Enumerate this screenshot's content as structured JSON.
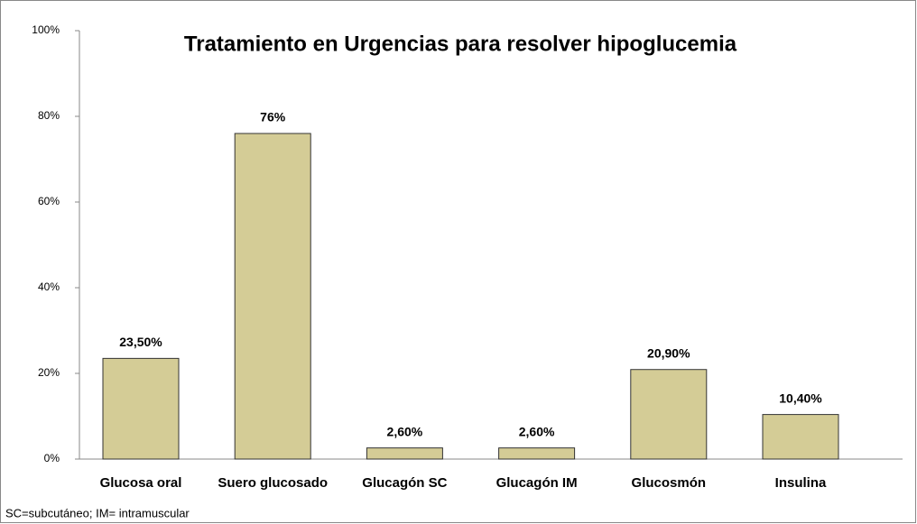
{
  "chart_data": {
    "type": "bar",
    "title": "Tratamiento en Urgencias para resolver hipoglucemia",
    "categories": [
      "Glucosa oral",
      "Suero glucosado",
      "Glucagón SC",
      "Glucagón IM",
      "Glucosmón",
      "Insulina"
    ],
    "values": [
      23.5,
      76,
      2.6,
      2.6,
      20.9,
      10.4
    ],
    "value_labels": [
      "23,50%",
      "76%",
      "2,60%",
      "2,60%",
      "20,90%",
      "10,40%"
    ],
    "color": "#d4cc96",
    "ylim": [
      0,
      100
    ],
    "yticks": [
      {
        "value": 0,
        "label": "0%"
      },
      {
        "value": 20,
        "label": "20%"
      },
      {
        "value": 40,
        "label": "40%"
      },
      {
        "value": 60,
        "label": "60%"
      },
      {
        "value": 80,
        "label": "80%"
      },
      {
        "value": 100,
        "label": "100%"
      }
    ],
    "grid": false,
    "footnote": "SC=subcutáneo; IM= intramuscular"
  }
}
